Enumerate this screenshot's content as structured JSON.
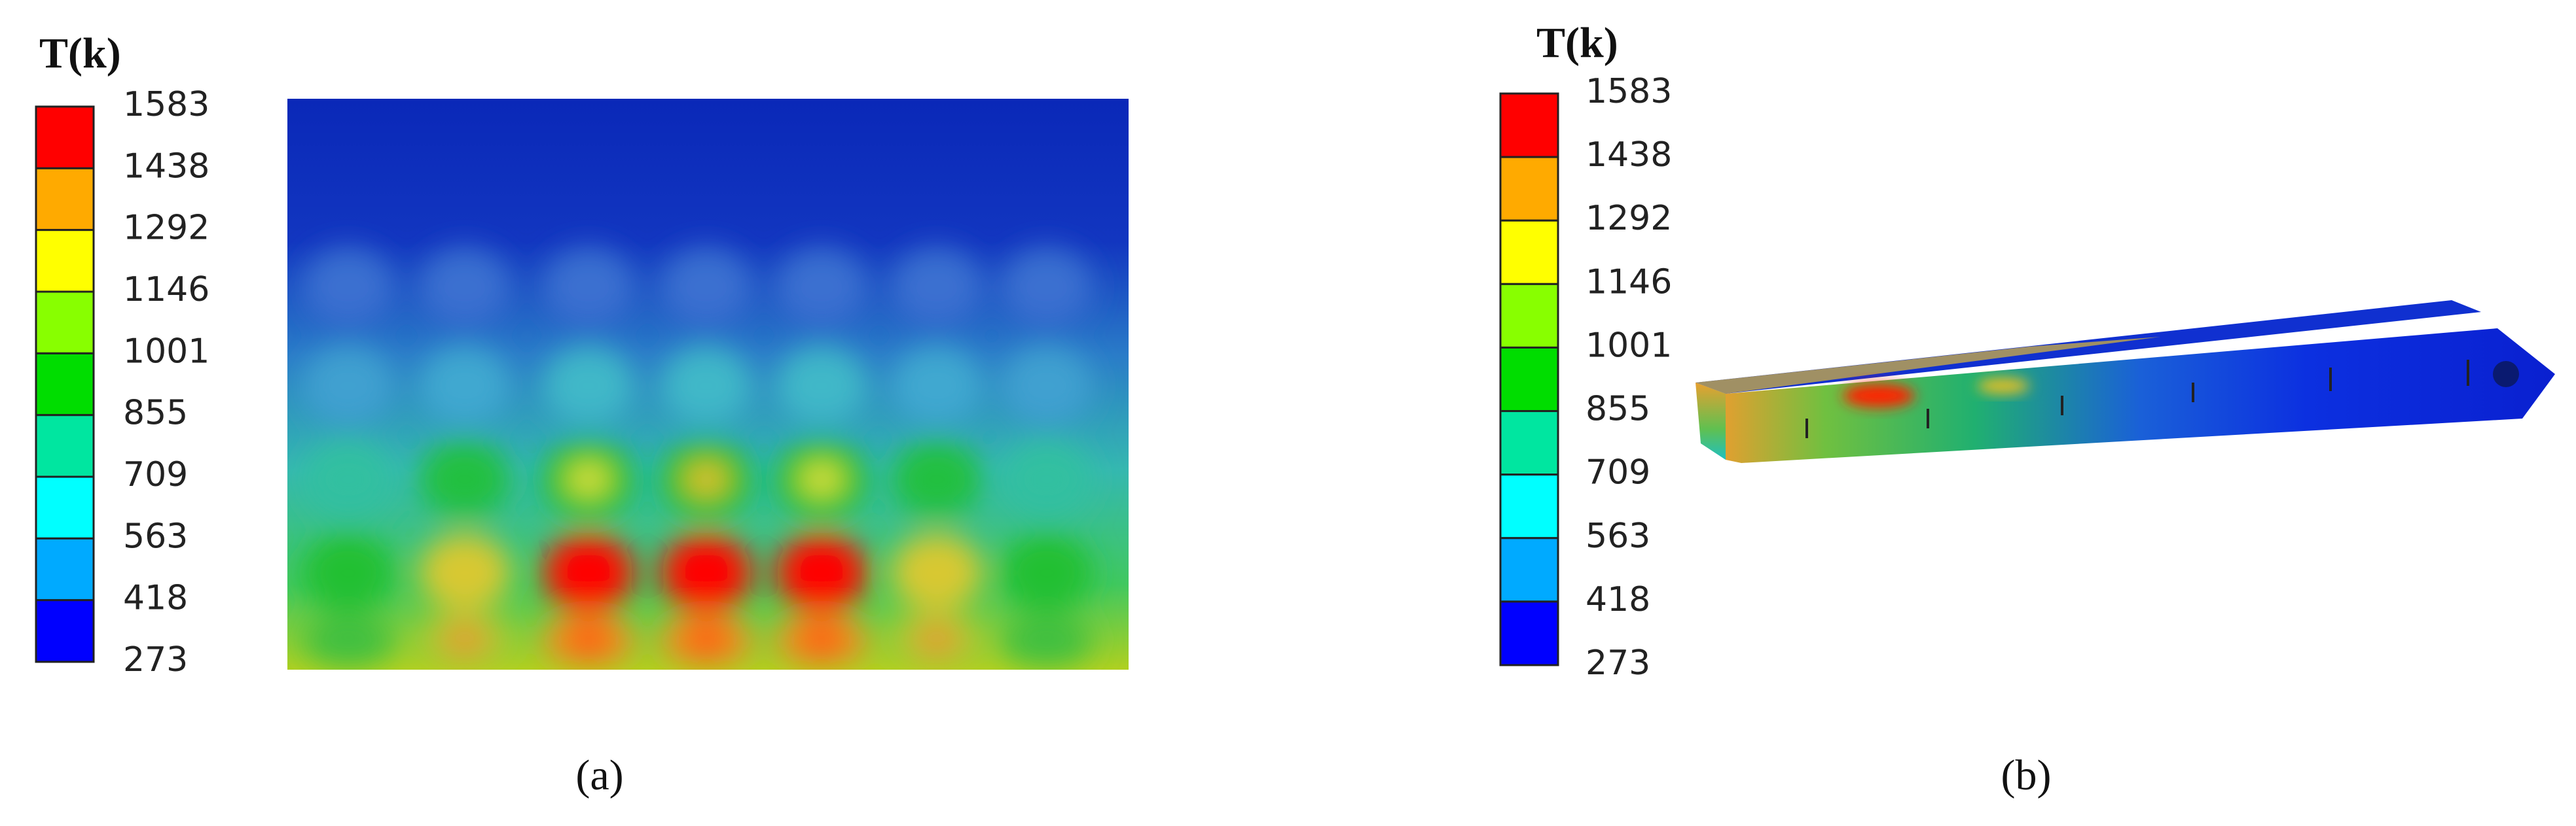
{
  "panels": [
    {
      "legend": {
        "title": "T(k)",
        "ticks": [
          1583,
          1438,
          1292,
          1146,
          1001,
          855,
          709,
          563,
          418,
          273
        ],
        "colors": [
          "#ff0000",
          "#ffaa00",
          "#ffff00",
          "#88ff00",
          "#00dd00",
          "#00e6a0",
          "#00ffff",
          "#00aaff",
          "#0000ff"
        ]
      },
      "caption": "(a)"
    },
    {
      "legend": {
        "title": "T(k)",
        "ticks": [
          1583,
          1438,
          1292,
          1146,
          1001,
          855,
          709,
          563,
          418,
          273
        ],
        "colors": [
          "#ff0000",
          "#ffaa00",
          "#ffff00",
          "#88ff00",
          "#00dd00",
          "#00e6a0",
          "#00ffff",
          "#00aaff",
          "#0000ff"
        ]
      },
      "caption": "(b)"
    }
  ]
}
